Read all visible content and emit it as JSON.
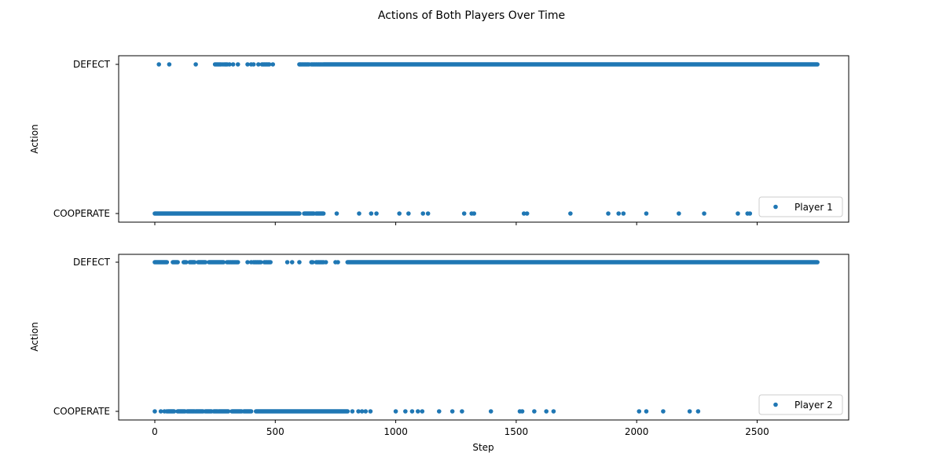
{
  "figure": {
    "title": "Actions of Both Players Over Time",
    "marker_color": "#1f77b4"
  },
  "chart_data": [
    {
      "type": "scatter",
      "legend": {
        "label": "Player 1",
        "placement": "lower right"
      },
      "xlabel": "",
      "ylabel": "Action",
      "xlim": [
        -150,
        2880
      ],
      "xticks": [
        0,
        500,
        1000,
        1500,
        2000,
        2500
      ],
      "yticks": [
        "COOPERATE",
        "DEFECT"
      ],
      "show_x_tick_labels": false,
      "grid": false,
      "series": [
        {
          "name": "Player 1",
          "defect": {
            "x": [
              17,
              60,
              170,
              250,
              255,
              260,
              265,
              270,
              275,
              283,
              290,
              295,
              300,
              310,
              325,
              345,
              385,
              400,
              410,
              430,
              445,
              450,
              455,
              460,
              465,
              470,
              475,
              490,
              600,
              605,
              610,
              615,
              620,
              625,
              630,
              635,
              640,
              650,
              655,
              660,
              665,
              670,
              675,
              680,
              685,
              690,
              695
            ],
            "ranges": [
              [
                700,
                2750
              ]
            ]
          },
          "cooperate": {
            "x": [
              755,
              848,
              898,
              920,
              1015,
              1053,
              1113,
              1134,
              1284,
              1315,
              1325,
              1532,
              1545,
              1725,
              1882,
              1925,
              1945,
              2040,
              2175,
              2280,
              2420,
              2460,
              2470
            ],
            "ranges": [
              [
                0,
                600
              ],
              [
                620,
                660
              ],
              [
                670,
                700
              ]
            ]
          }
        }
      ]
    },
    {
      "type": "scatter",
      "legend": {
        "label": "Player 2",
        "placement": "lower right"
      },
      "xlabel": "Step",
      "ylabel": "Action",
      "xlim": [
        -150,
        2880
      ],
      "xticks": [
        0,
        500,
        1000,
        1500,
        2000,
        2500
      ],
      "yticks": [
        "COOPERATE",
        "DEFECT"
      ],
      "show_x_tick_labels": true,
      "grid": false,
      "series": [
        {
          "name": "Player 2",
          "defect": {
            "x": [
              300,
              305,
              310,
              315,
              320,
              325,
              330,
              335,
              340,
              345,
              385,
              400,
              410,
              415,
              420,
              425,
              430,
              435,
              440,
              455,
              460,
              465,
              470,
              475,
              480,
              550,
              570,
              600,
              650,
              655,
              670,
              675,
              680,
              685,
              690,
              695,
              700,
              710,
              750,
              760
            ],
            "ranges": [
              [
                0,
                50
              ],
              [
                75,
                95
              ],
              [
                120,
                130
              ],
              [
                145,
                165
              ],
              [
                180,
                210
              ],
              [
                225,
                285
              ],
              [
                800,
                2750
              ]
            ]
          },
          "cooperate": {
            "x": [
              0,
              25,
              40,
              50,
              820,
              845,
              860,
              875,
              895,
              1000,
              1040,
              1068,
              1092,
              1110,
              1180,
              1235,
              1275,
              1395,
              1515,
              1525,
              1575,
              1625,
              1655,
              2010,
              2040,
              2110,
              2220,
              2255
            ],
            "ranges": [
              [
                55,
                80
              ],
              [
                95,
                125
              ],
              [
                135,
                165
              ],
              [
                170,
                200
              ],
              [
                210,
                235
              ],
              [
                245,
                260
              ],
              [
                265,
                305
              ],
              [
                320,
                360
              ],
              [
                370,
                400
              ],
              [
                420,
                800
              ]
            ]
          }
        }
      ]
    }
  ]
}
